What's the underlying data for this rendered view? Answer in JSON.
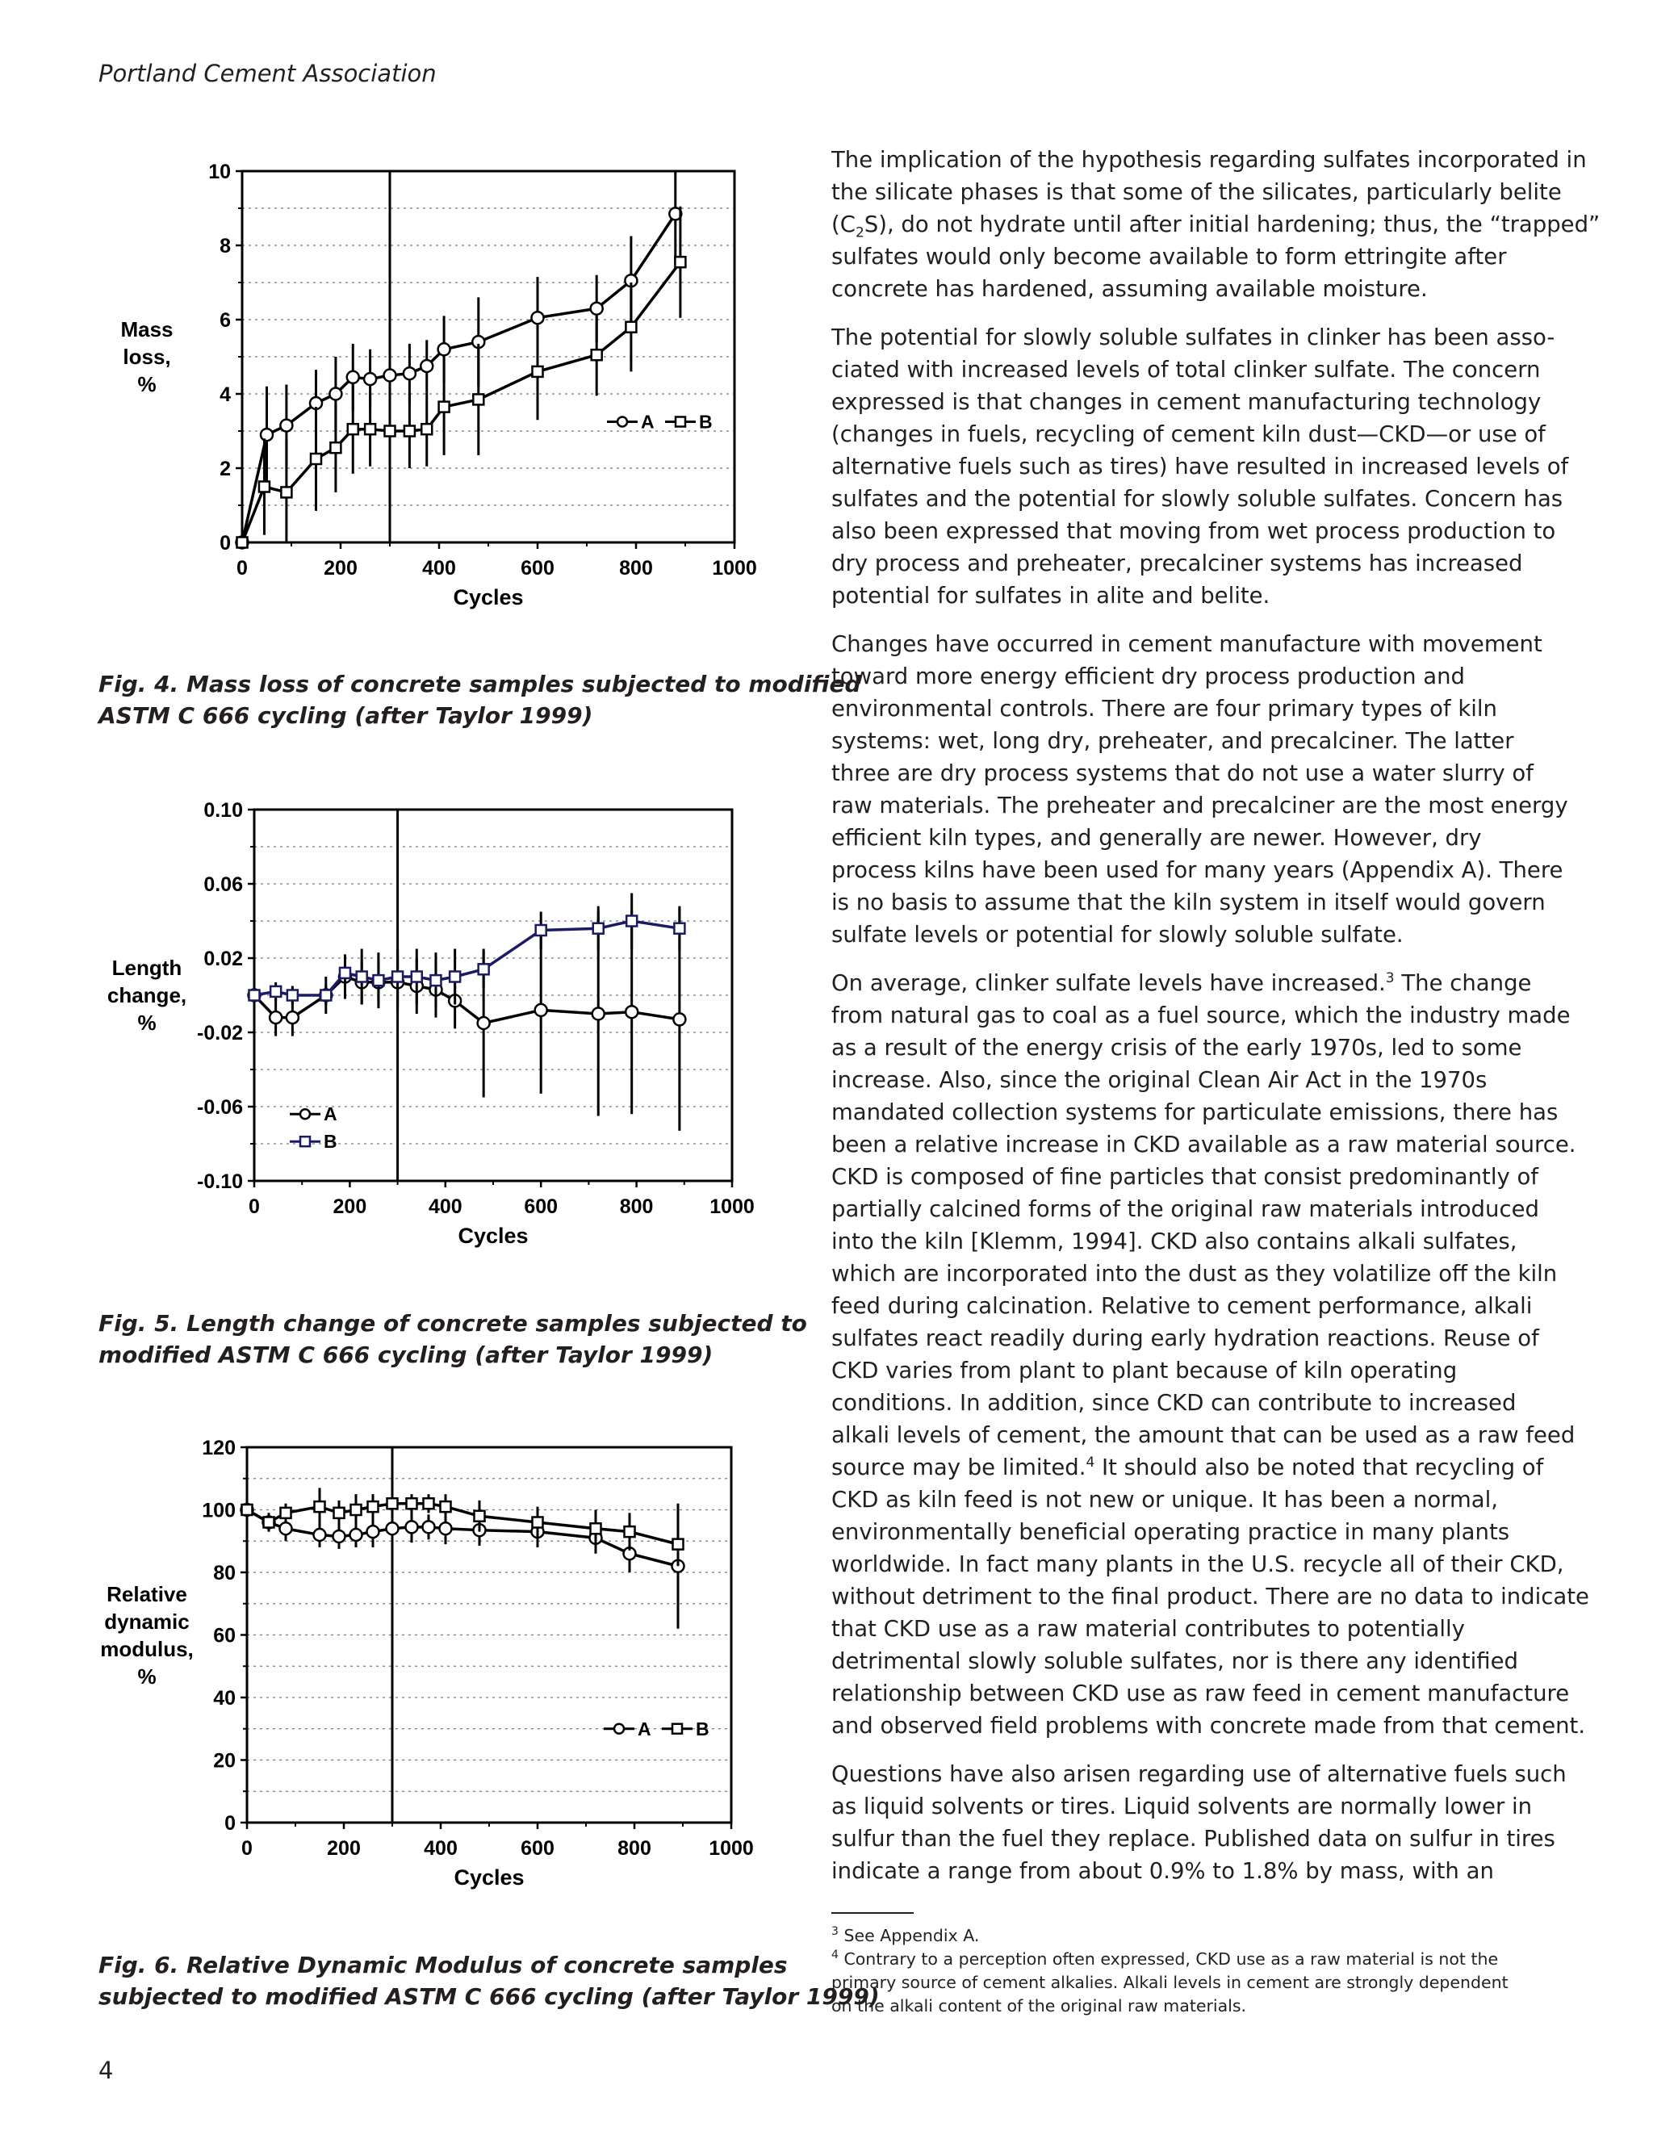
{
  "header": {
    "running_head": "Portland Cement Association"
  },
  "page_number": "4",
  "figures": [
    {
      "caption_lines": [
        "Fig. 4.  Mass loss of concrete samples subjected to modified",
        "ASTM C 666 cycling (after Taylor 1999)"
      ]
    },
    {
      "caption_lines": [
        "Fig. 5.  Length change of concrete samples subjected to",
        "modified ASTM C 666 cycling (after Taylor 1999)"
      ]
    },
    {
      "caption_lines": [
        "Fig. 6. Relative Dynamic Modulus of concrete samples",
        "subjected to modified ASTM C 666 cycling (after Taylor 1999)"
      ]
    }
  ],
  "chart_data": [
    {
      "type": "line",
      "xlabel": "Cycles",
      "ylabel_lines": [
        "Mass",
        "loss,",
        "%"
      ],
      "xlim": [
        0,
        1000
      ],
      "ylim": [
        0,
        10
      ],
      "xticks": [
        0,
        200,
        400,
        600,
        800,
        1000
      ],
      "yticks": [
        0,
        2,
        4,
        6,
        8,
        10
      ],
      "ytick_labels": [
        "0",
        "2",
        "4",
        "6",
        "8",
        "10"
      ],
      "grid": true,
      "marker_cycle": 300,
      "legend_position": "right",
      "series": [
        {
          "name": "A",
          "marker": "circle",
          "x": [
            0,
            50,
            90,
            150,
            190,
            225,
            260,
            300,
            340,
            375,
            410,
            480,
            600,
            720,
            790,
            880
          ],
          "y": [
            0,
            2.9,
            3.15,
            3.75,
            4.0,
            4.45,
            4.4,
            4.5,
            4.55,
            4.75,
            5.2,
            5.4,
            6.05,
            6.3,
            7.05,
            8.85
          ],
          "err": [
            0,
            1.3,
            1.1,
            0.9,
            1.0,
            0.9,
            0.8,
            0.7,
            0.8,
            0.7,
            0.9,
            1.2,
            1.1,
            0.9,
            1.2,
            1.4
          ]
        },
        {
          "name": "B",
          "marker": "square",
          "x": [
            0,
            45,
            90,
            150,
            190,
            225,
            260,
            300,
            340,
            375,
            410,
            480,
            600,
            720,
            790,
            890
          ],
          "y": [
            0,
            1.5,
            1.35,
            2.25,
            2.55,
            3.05,
            3.05,
            3.0,
            3.0,
            3.05,
            3.65,
            3.85,
            4.6,
            5.05,
            5.8,
            7.55
          ],
          "err": [
            0,
            1.3,
            1.4,
            1.4,
            1.2,
            1.2,
            1.0,
            1.0,
            1.0,
            1.0,
            1.3,
            1.5,
            1.3,
            1.1,
            1.2,
            1.5
          ]
        }
      ]
    },
    {
      "type": "line",
      "xlabel": "Cycles",
      "ylabel_lines": [
        "Length",
        "change,",
        "%"
      ],
      "xlim": [
        0,
        1000
      ],
      "ylim": [
        -0.1,
        0.1
      ],
      "xticks": [
        0,
        200,
        400,
        600,
        800,
        1000
      ],
      "yticks": [
        -0.1,
        -0.06,
        -0.02,
        0.02,
        0.06,
        0.1
      ],
      "ytick_labels": [
        "-0.10",
        "-0.06",
        "-0.02",
        "0.02",
        "0.06",
        "0.10"
      ],
      "grid": true,
      "marker_cycle": 300,
      "legend_position": "bottom-left",
      "series": [
        {
          "name": "A",
          "marker": "circle",
          "color": "#000000",
          "x": [
            0,
            45,
            80,
            150,
            190,
            225,
            260,
            300,
            340,
            380,
            420,
            480,
            600,
            720,
            790,
            890
          ],
          "y": [
            0,
            -0.012,
            -0.012,
            0,
            0.01,
            0.007,
            0.007,
            0.007,
            0.005,
            0.003,
            -0.003,
            -0.015,
            -0.008,
            -0.01,
            -0.009,
            -0.013
          ],
          "err": [
            0,
            0.01,
            0.01,
            0.01,
            0.012,
            0.012,
            0.012,
            0.015,
            0.015,
            0.015,
            0.015,
            0.04,
            0.045,
            0.055,
            0.055,
            0.06
          ]
        },
        {
          "name": "B",
          "marker": "square",
          "color": "#1a1a66",
          "x": [
            0,
            45,
            80,
            150,
            190,
            225,
            260,
            300,
            340,
            380,
            420,
            480,
            600,
            720,
            790,
            890
          ],
          "y": [
            0,
            0.002,
            0,
            0,
            0.012,
            0.01,
            0.008,
            0.01,
            0.01,
            0.008,
            0.01,
            0.014,
            0.035,
            0.036,
            0.04,
            0.036
          ],
          "err": [
            0,
            0.005,
            0.005,
            0.005,
            0.01,
            0.015,
            0.015,
            0.015,
            0.015,
            0.015,
            0.015,
            0.01,
            0.01,
            0.012,
            0.015,
            0.012
          ]
        }
      ]
    },
    {
      "type": "line",
      "xlabel": "Cycles",
      "ylabel_lines": [
        "Relative",
        "dynamic",
        "modulus,",
        "%"
      ],
      "xlim": [
        0,
        1000
      ],
      "ylim": [
        0,
        120
      ],
      "xticks": [
        0,
        200,
        400,
        600,
        800,
        1000
      ],
      "yticks": [
        0,
        20,
        40,
        60,
        80,
        100,
        120
      ],
      "ytick_labels": [
        "0",
        "20",
        "40",
        "60",
        "80",
        "100",
        "120"
      ],
      "grid": true,
      "marker_cycle": 300,
      "legend_position": "right",
      "series": [
        {
          "name": "A",
          "marker": "circle",
          "x": [
            0,
            45,
            80,
            150,
            190,
            225,
            260,
            300,
            340,
            375,
            410,
            480,
            600,
            720,
            790,
            890
          ],
          "y": [
            100,
            96,
            94,
            92,
            91.5,
            92,
            93,
            94,
            94.5,
            94.5,
            94,
            93.5,
            93,
            91,
            86,
            82
          ],
          "err": [
            0,
            3,
            4,
            4,
            4,
            4,
            5,
            5,
            5,
            4,
            5,
            5,
            5,
            5,
            6,
            20
          ]
        },
        {
          "name": "B",
          "marker": "square",
          "x": [
            0,
            45,
            80,
            150,
            190,
            225,
            260,
            300,
            340,
            375,
            410,
            480,
            600,
            720,
            790,
            890
          ],
          "y": [
            100,
            96,
            99,
            101,
            99,
            100,
            101,
            102,
            102,
            102,
            101,
            98,
            96,
            94,
            93,
            89
          ],
          "err": [
            0,
            3,
            3,
            6,
            4,
            5,
            4,
            4,
            3,
            3,
            4,
            5,
            5,
            6,
            6,
            7
          ]
        }
      ]
    }
  ],
  "body_paragraphs": [
    {
      "lines": [
        "The implication of the hypothesis regarding sulfates incorporated in",
        "the silicate phases is that some of the silicates, particularly belite",
        "(C<sub>2</sub>S), do not hydrate until after initial hardening; thus, the “trapped”",
        "sulfates would only become available to form ettringite after",
        "concrete has hardened, assuming available moisture."
      ]
    },
    {
      "lines": [
        "The potential for slowly soluble sulfates in clinker has been asso-",
        "ciated with increased levels of total clinker sulfate. The concern",
        "expressed is that changes in cement manufacturing technology",
        "(changes in fuels, recycling of cement kiln dust—CKD—or use of",
        "alternative fuels such as tires) have resulted in increased levels of",
        "sulfates and the potential for slowly soluble sulfates. Concern has",
        "also been expressed that moving from wet process production to",
        "dry process and preheater, precalciner systems has increased",
        "potential for sulfates in alite and belite."
      ]
    },
    {
      "lines": [
        "Changes have occurred in cement manufacture with movement",
        "toward more energy efficient dry process production and",
        "environmental controls. There are four primary types of kiln",
        "systems: wet, long dry, preheater, and precalciner. The latter",
        "three are dry process systems that do not use a water slurry of",
        "raw materials. The preheater and precalciner are the most energy",
        "efficient kiln types, and generally are newer. However, dry",
        "process kilns have been used for many years (Appendix A). There",
        "is no basis to assume that the kiln system in itself would govern",
        "sulfate levels or potential for slowly soluble sulfate."
      ]
    },
    {
      "lines": [
        "On average, clinker sulfate levels have increased.<sup>3</sup>  The change",
        "from natural gas to coal as a fuel source, which the industry made",
        "as a result of the energy crisis of the early 1970s, led to some",
        "increase. Also, since the original Clean Air Act in the 1970s",
        "mandated collection systems for particulate emissions, there has",
        "been a relative increase in CKD available as a raw material source.",
        "CKD is composed of fine particles that consist predominantly of",
        "partially calcined forms of the original raw materials introduced",
        "into the kiln [Klemm, 1994]. CKD also contains alkali sulfates,",
        "which are incorporated into the dust as they volatilize off the kiln",
        "feed during calcination. Relative to cement performance, alkali",
        "sulfates react readily during early hydration reactions. Reuse of",
        "CKD varies from plant to plant because of kiln operating",
        "conditions. In addition, since CKD can contribute to increased",
        "alkali levels of cement, the amount that can be used as a raw feed",
        "source may be limited.<sup>4</sup>  It should also be noted that recycling of",
        "CKD as kiln feed is not new or unique. It has been a normal,",
        "environmentally beneficial operating practice in many plants",
        "worldwide. In fact many plants in the U.S. recycle all of their CKD,",
        "without detriment to the final product. There are no data to indicate",
        "that CKD use as a raw material contributes to potentially",
        "detrimental slowly soluble sulfates, nor is there any identified",
        "relationship between CKD use as raw feed in cement manufacture",
        "and observed field problems with concrete made from that cement."
      ]
    },
    {
      "lines": [
        "Questions have also arisen regarding use of alternative fuels such",
        "as liquid solvents or tires. Liquid solvents are normally lower in",
        "sulfur than the fuel they replace. Published data on sulfur in tires",
        "indicate a range from about 0.9% to 1.8% by mass, with an"
      ]
    }
  ],
  "footnotes": [
    {
      "lines": [
        "<sup>3</sup> See Appendix A."
      ]
    },
    {
      "lines": [
        "<sup>4</sup> Contrary to a perception often expressed, CKD use as a raw material is not the",
        "primary source of cement alkalies. Alkali levels in cement are strongly dependent",
        "on the alkali content of the original raw materials."
      ]
    }
  ]
}
